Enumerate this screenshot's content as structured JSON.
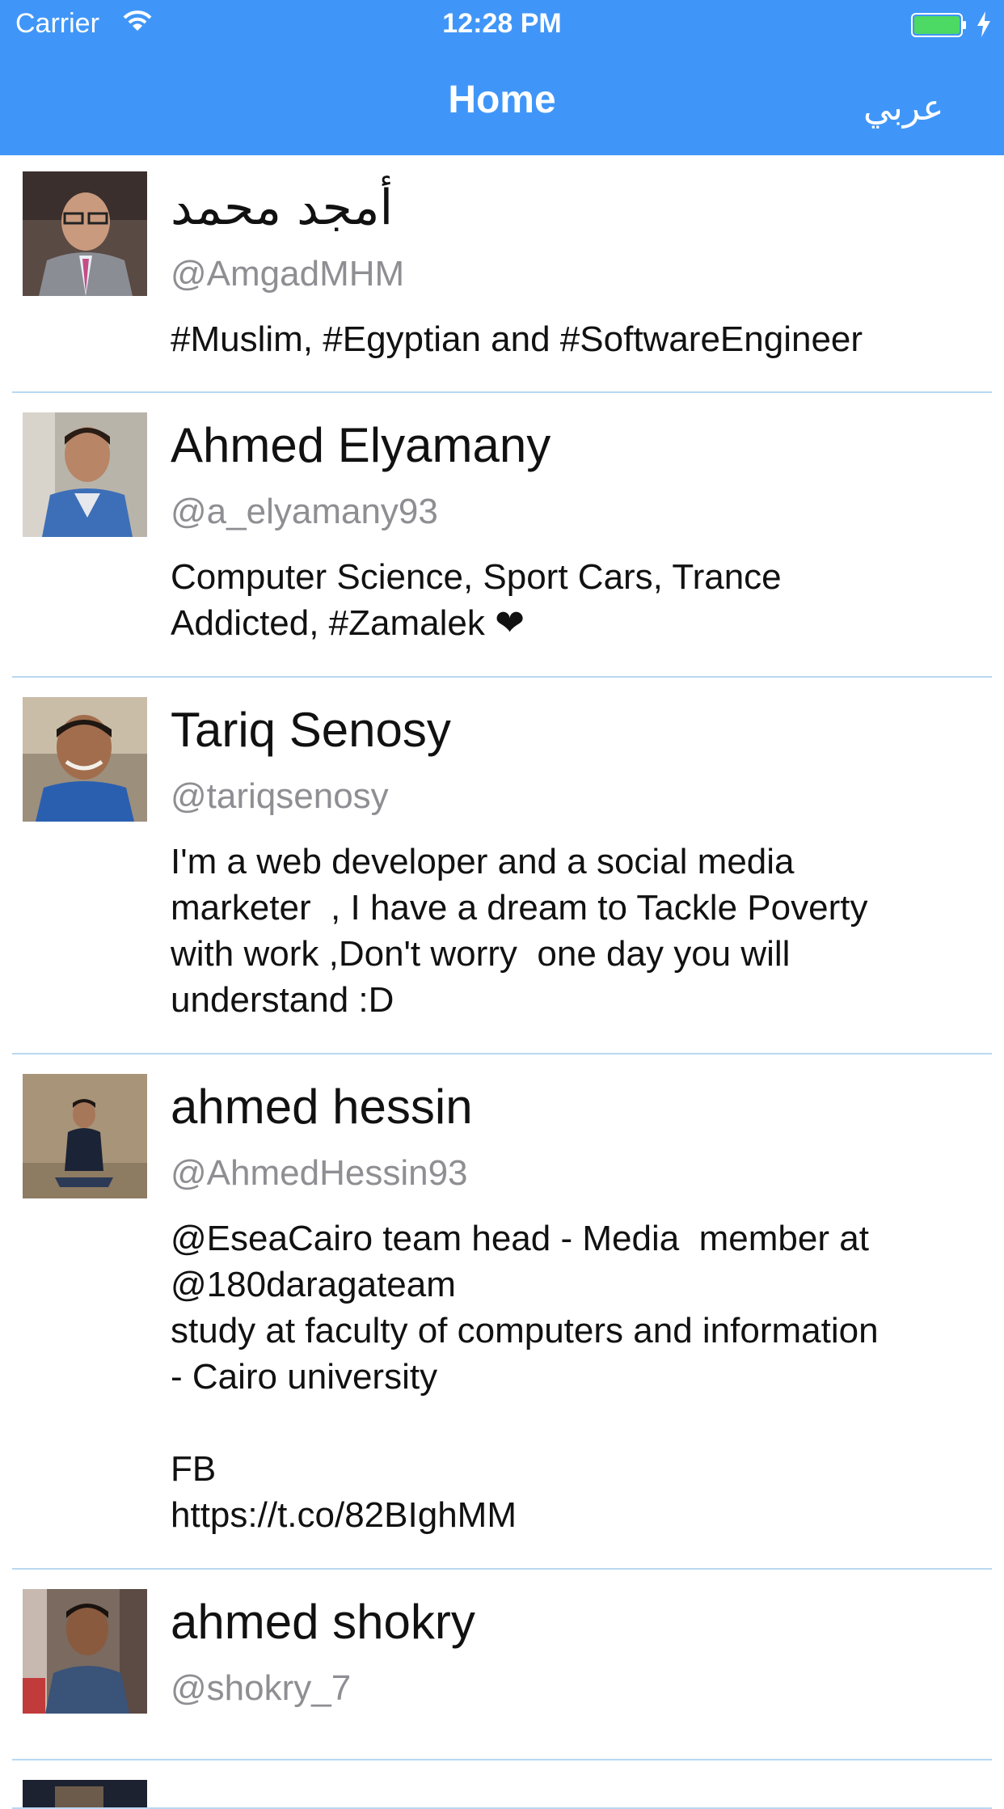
{
  "status_bar": {
    "carrier": "Carrier",
    "time": "12:28 PM"
  },
  "nav": {
    "title": "Home",
    "language_button": "عربي"
  },
  "accent_color": "#4096f8",
  "users": [
    {
      "name": "أمجد محمد",
      "handle": "@AmgadMHM",
      "bio": "#Muslim, #Egyptian and #SoftwareEngineer"
    },
    {
      "name": "Ahmed Elyamany",
      "handle": "@a_elyamany93",
      "bio": "Computer Science, Sport Cars, Trance\nAddicted, #Zamalek ❤"
    },
    {
      "name": "Tariq Senosy",
      "handle": "@tariqsenosy",
      "bio": "I'm a web developer and a social media\nmarketer  , I have a dream to Tackle Poverty\nwith work ,Don't worry  one day you will\nunderstand :D"
    },
    {
      "name": "ahmed hessin",
      "handle": "@AhmedHessin93",
      "bio": "@EseaCairo team head - Media  member at\n@180daragateam\nstudy at faculty of computers and information\n- Cairo university\n\nFB\nhttps://t.co/82BIghMM"
    },
    {
      "name": "ahmed shokry",
      "handle": "@shokry_7",
      "bio": ""
    }
  ]
}
